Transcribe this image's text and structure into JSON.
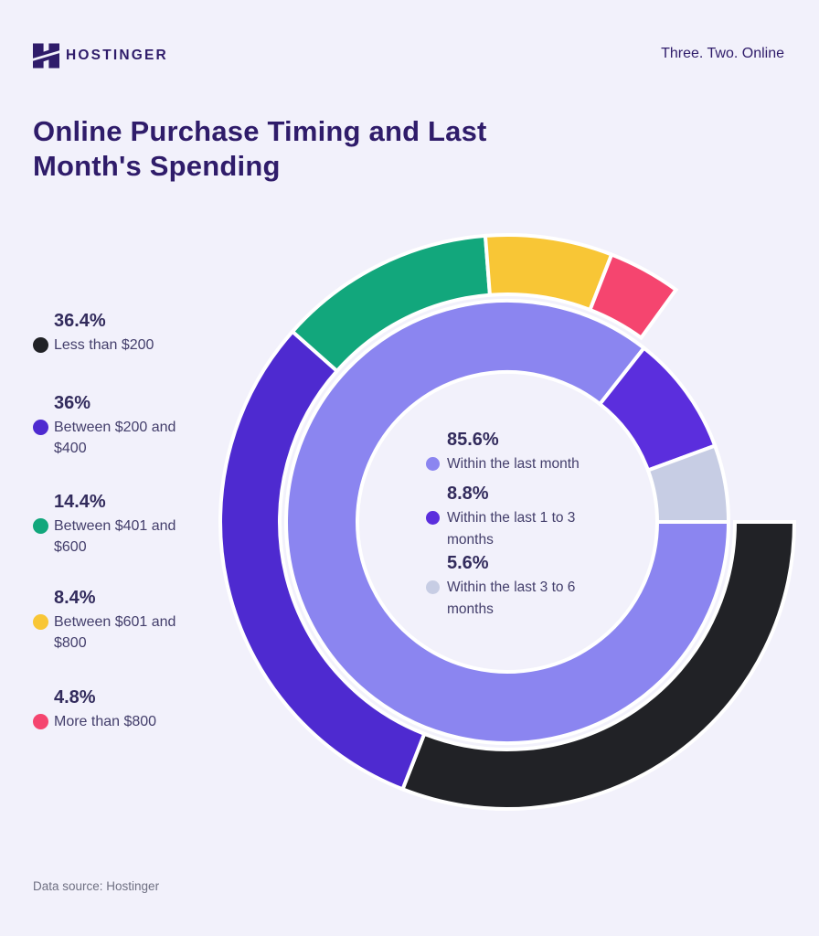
{
  "header": {
    "brand": "HOSTINGER",
    "tagline": "Three. Two. Online"
  },
  "title": "Online Purchase Timing and Last Month's Spending",
  "footer": {
    "source": "Data source: Hostinger"
  },
  "colors": {
    "background": "#F2F1FB",
    "brand_dark_purple": "#2F1C6A",
    "value_text": "#322B5C",
    "label_text": "#433E6B",
    "footer_text": "#6F7082",
    "separator_white": "#FFFFFF"
  },
  "chart_data": {
    "type": "donut-double",
    "title": "Online Purchase Timing and Last Month's Spending",
    "outer_ring": {
      "start_angle_deg": 90,
      "total_span_deg": 306,
      "segments": [
        {
          "display": "36.4%",
          "value_pct": 36.4,
          "label": "Less than $200",
          "color": "#212226"
        },
        {
          "display": "36%",
          "value_pct": 36.0,
          "label": "Between $200 and $400",
          "color": "#4E2AD0"
        },
        {
          "display": "14.4%",
          "value_pct": 14.4,
          "label": "Between $401 and $600",
          "color": "#12A77C"
        },
        {
          "display": "8.4%",
          "value_pct": 8.4,
          "label": "Between $601 and $800",
          "color": "#F8C636"
        },
        {
          "display": "4.8%",
          "value_pct": 4.8,
          "label": "More than $800",
          "color": "#F5456F"
        }
      ]
    },
    "inner_ring": {
      "start_angle_deg": 90,
      "total_span_deg": 360,
      "segments": [
        {
          "display": "85.6%",
          "value_pct": 85.6,
          "label": "Within the last month",
          "color": "#8B85F0"
        },
        {
          "display": "8.8%",
          "value_pct": 8.8,
          "label": "Within the last 1 to 3 months",
          "color": "#5B2EDD"
        },
        {
          "display": "5.6%",
          "value_pct": 5.6,
          "label": "Within the last 3 to 6 months",
          "color": "#C7CDE4"
        }
      ]
    }
  }
}
